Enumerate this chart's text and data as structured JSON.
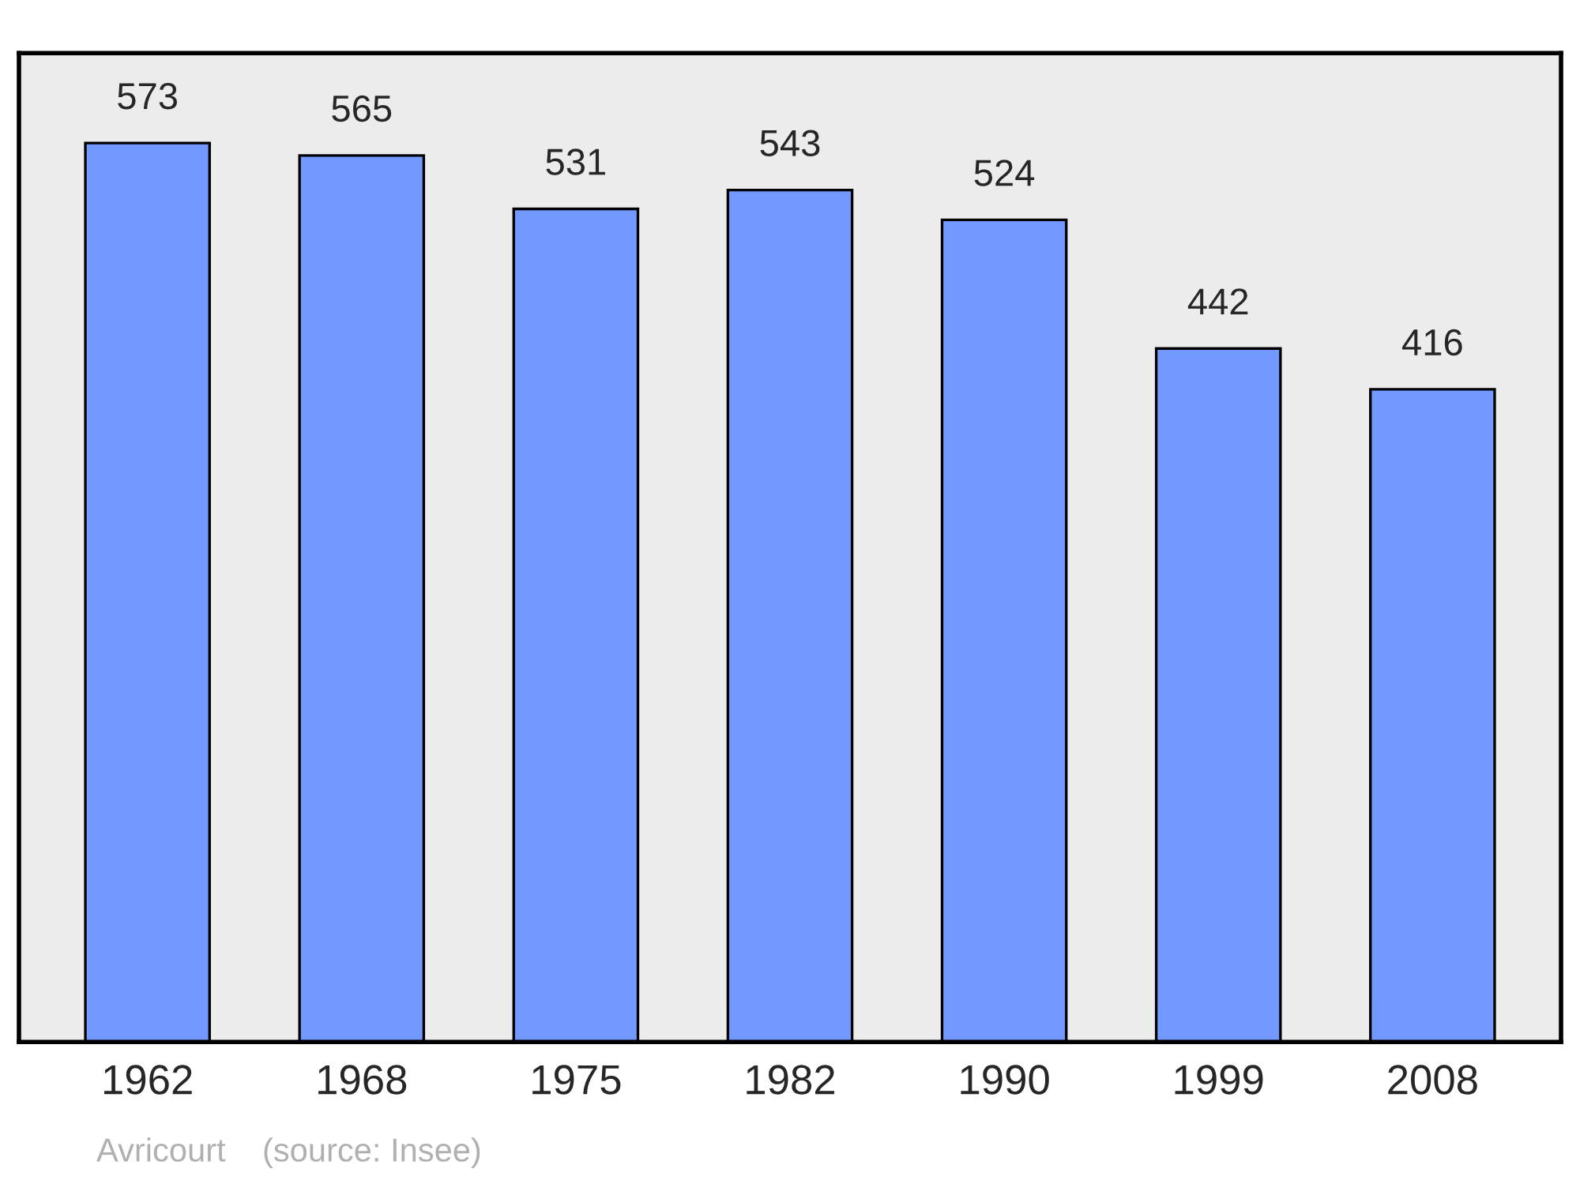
{
  "chart_data": {
    "type": "bar",
    "categories": [
      "1962",
      "1968",
      "1975",
      "1982",
      "1990",
      "1999",
      "2008"
    ],
    "values": [
      573,
      565,
      531,
      543,
      524,
      442,
      416
    ],
    "color": "#7299ff",
    "data_labels": true,
    "grid": false,
    "tick_labels": "x",
    "annotations": [
      "Avricourt    (source: Insee)"
    ]
  }
}
